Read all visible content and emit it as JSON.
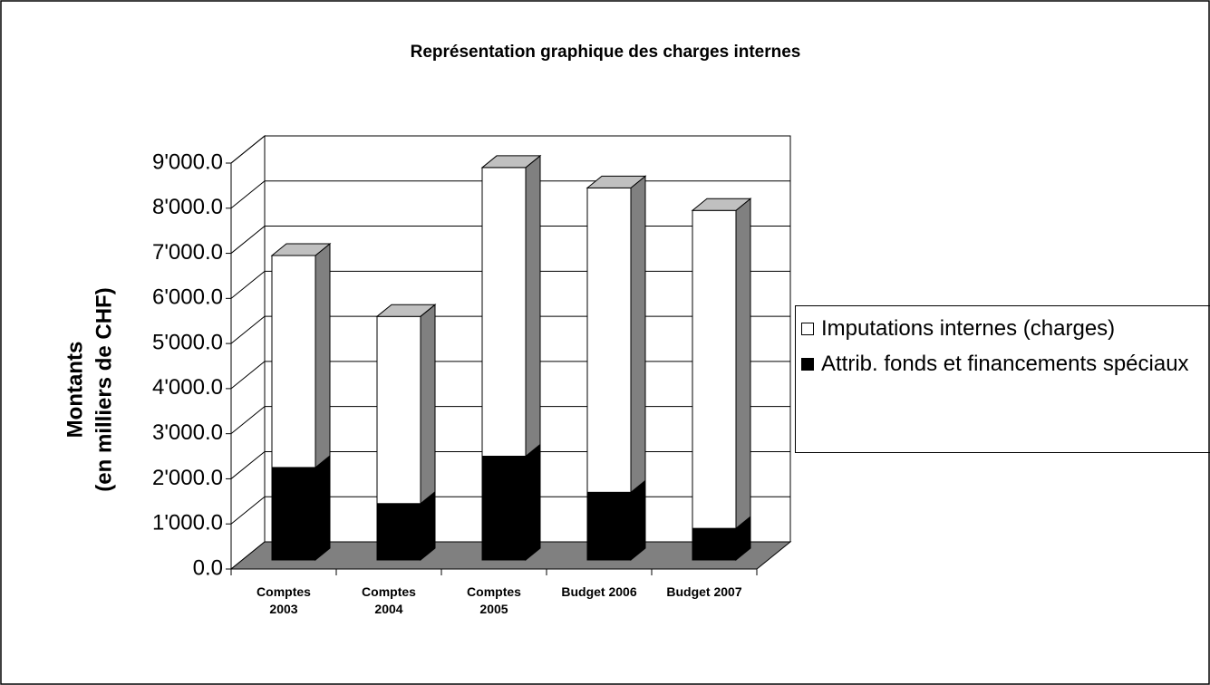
{
  "chart_data": {
    "type": "bar3d_stacked",
    "title": "Représentation graphique des charges internes",
    "y_label": [
      "Montants",
      "(en milliers de CHF)"
    ],
    "categories": [
      "Comptes 2003",
      "Comptes 2004",
      "Comptes 2005",
      "Budget 2006",
      "Budget 2007"
    ],
    "series": [
      {
        "name": "Attrib. fonds et financements spéciaux",
        "color": "#000000",
        "values": [
          2050,
          1250,
          2300,
          1500,
          700
        ]
      },
      {
        "name": "Imputations internes (charges)",
        "color": "#ffffff",
        "values": [
          4700,
          4150,
          6400,
          6750,
          7050
        ]
      }
    ],
    "legend_order": [
      1,
      0
    ],
    "ylim": [
      0,
      9000
    ],
    "yticks": [
      {
        "value": 0,
        "label": "0.0"
      },
      {
        "value": 1000,
        "label": "1'000.0"
      },
      {
        "value": 2000,
        "label": "2'000.0"
      },
      {
        "value": 3000,
        "label": "3'000.0"
      },
      {
        "value": 4000,
        "label": "4'000.0"
      },
      {
        "value": 5000,
        "label": "5'000.0"
      },
      {
        "value": 6000,
        "label": "6'000.0"
      },
      {
        "value": 7000,
        "label": "7'000.0"
      },
      {
        "value": 8000,
        "label": "8'000.0"
      },
      {
        "value": 9000,
        "label": "9'000.0"
      }
    ],
    "grid": true
  }
}
